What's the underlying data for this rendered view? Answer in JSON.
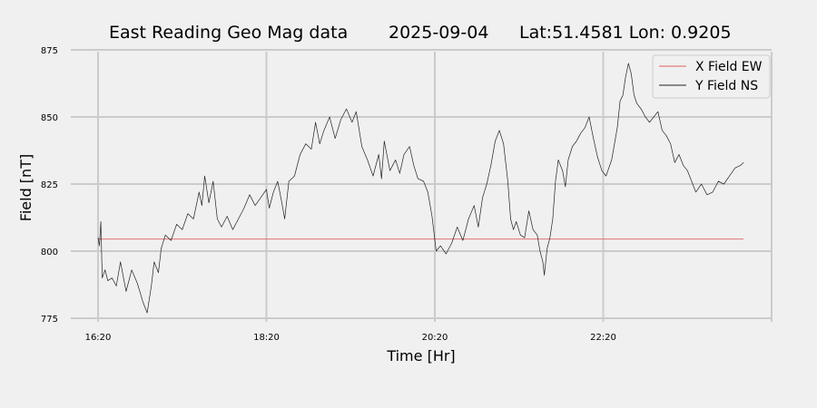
{
  "chart_data": {
    "type": "line",
    "title": {
      "name": "East Reading Geo Mag data",
      "date": "2025-09-04",
      "location": "Lat:51.4581  Lon: 0.9205"
    },
    "xlabel": "Time  [Hr]",
    "ylabel": "Field  [nT]",
    "x_unit": "hours",
    "xlim": [
      "16:20",
      "24:20"
    ],
    "ylim": [
      775,
      875
    ],
    "xticks": [
      "16:20",
      "18:20",
      "20:20",
      "22:20"
    ],
    "yticks": [
      775,
      800,
      825,
      850,
      875
    ],
    "grid": true,
    "legend_position": "top-right",
    "series": [
      {
        "name": "X Field EW",
        "color": "#e06060",
        "points": [
          [
            "16:20",
            804.5
          ],
          [
            "24:00",
            804.5
          ]
        ]
      },
      {
        "name": "Y Field NS",
        "color": "#222222",
        "points": [
          [
            "16:20",
            805
          ],
          [
            "16:21",
            802
          ],
          [
            "16:22",
            811
          ],
          [
            "16:23",
            790
          ],
          [
            "16:25",
            793
          ],
          [
            "16:27",
            789
          ],
          [
            "16:30",
            790
          ],
          [
            "16:33",
            787
          ],
          [
            "16:36",
            796
          ],
          [
            "16:40",
            785
          ],
          [
            "16:44",
            793
          ],
          [
            "16:48",
            788
          ],
          [
            "16:52",
            781
          ],
          [
            "16:55",
            777
          ],
          [
            "16:58",
            787
          ],
          [
            "17:00",
            796
          ],
          [
            "17:03",
            792
          ],
          [
            "17:05",
            801
          ],
          [
            "17:08",
            806
          ],
          [
            "17:12",
            804
          ],
          [
            "17:16",
            810
          ],
          [
            "17:20",
            808
          ],
          [
            "17:24",
            814
          ],
          [
            "17:28",
            812
          ],
          [
            "17:32",
            822
          ],
          [
            "17:34",
            817
          ],
          [
            "17:36",
            828
          ],
          [
            "17:39",
            818
          ],
          [
            "17:42",
            826
          ],
          [
            "17:45",
            812
          ],
          [
            "17:48",
            809
          ],
          [
            "17:52",
            813
          ],
          [
            "17:56",
            808
          ],
          [
            "18:00",
            812
          ],
          [
            "18:04",
            816
          ],
          [
            "18:08",
            821
          ],
          [
            "18:12",
            817
          ],
          [
            "18:16",
            820
          ],
          [
            "18:20",
            823
          ],
          [
            "18:22",
            816
          ],
          [
            "18:25",
            822
          ],
          [
            "18:28",
            826
          ],
          [
            "18:31",
            818
          ],
          [
            "18:33",
            812
          ],
          [
            "18:36",
            826
          ],
          [
            "18:40",
            828
          ],
          [
            "18:44",
            836
          ],
          [
            "18:48",
            840
          ],
          [
            "18:52",
            838
          ],
          [
            "18:55",
            848
          ],
          [
            "18:58",
            840
          ],
          [
            "19:01",
            845
          ],
          [
            "19:05",
            850
          ],
          [
            "19:09",
            842
          ],
          [
            "19:13",
            849
          ],
          [
            "19:17",
            853
          ],
          [
            "19:21",
            848
          ],
          [
            "19:24",
            852
          ],
          [
            "19:28",
            839
          ],
          [
            "19:32",
            834
          ],
          [
            "19:36",
            828
          ],
          [
            "19:40",
            836
          ],
          [
            "19:42",
            827
          ],
          [
            "19:44",
            841
          ],
          [
            "19:48",
            830
          ],
          [
            "19:52",
            834
          ],
          [
            "19:55",
            829
          ],
          [
            "19:58",
            836
          ],
          [
            "20:02",
            839
          ],
          [
            "20:05",
            832
          ],
          [
            "20:08",
            827
          ],
          [
            "20:12",
            826
          ],
          [
            "20:15",
            822
          ],
          [
            "20:18",
            813
          ],
          [
            "20:21",
            800
          ],
          [
            "20:24",
            802
          ],
          [
            "20:28",
            799
          ],
          [
            "20:32",
            803
          ],
          [
            "20:36",
            809
          ],
          [
            "20:40",
            804
          ],
          [
            "20:44",
            812
          ],
          [
            "20:48",
            817
          ],
          [
            "20:51",
            809
          ],
          [
            "20:54",
            820
          ],
          [
            "20:57",
            825
          ],
          [
            "21:00",
            832
          ],
          [
            "21:03",
            841
          ],
          [
            "21:06",
            845
          ],
          [
            "21:09",
            840
          ],
          [
            "21:12",
            826
          ],
          [
            "21:14",
            812
          ],
          [
            "21:16",
            808
          ],
          [
            "21:18",
            811
          ],
          [
            "21:21",
            806
          ],
          [
            "21:24",
            805
          ],
          [
            "21:27",
            815
          ],
          [
            "21:30",
            808
          ],
          [
            "21:33",
            806
          ],
          [
            "21:35",
            800
          ],
          [
            "21:37",
            796
          ],
          [
            "21:38",
            791
          ],
          [
            "21:40",
            801
          ],
          [
            "21:42",
            805
          ],
          [
            "21:44",
            812
          ],
          [
            "21:46",
            826
          ],
          [
            "21:48",
            834
          ],
          [
            "21:51",
            830
          ],
          [
            "21:53",
            824
          ],
          [
            "21:55",
            834
          ],
          [
            "21:58",
            839
          ],
          [
            "22:01",
            841
          ],
          [
            "22:04",
            844
          ],
          [
            "22:07",
            846
          ],
          [
            "22:10",
            850
          ],
          [
            "22:13",
            842
          ],
          [
            "22:16",
            835
          ],
          [
            "22:19",
            830
          ],
          [
            "22:22",
            828
          ],
          [
            "22:26",
            834
          ],
          [
            "22:30",
            846
          ],
          [
            "22:32",
            856
          ],
          [
            "22:34",
            858
          ],
          [
            "22:36",
            865
          ],
          [
            "22:38",
            870
          ],
          [
            "22:40",
            866
          ],
          [
            "22:42",
            858
          ],
          [
            "22:44",
            855
          ],
          [
            "22:47",
            853
          ],
          [
            "22:50",
            850
          ],
          [
            "22:53",
            848
          ],
          [
            "22:56",
            850
          ],
          [
            "22:59",
            852
          ],
          [
            "23:02",
            845
          ],
          [
            "23:05",
            843
          ],
          [
            "23:08",
            840
          ],
          [
            "23:11",
            833
          ],
          [
            "23:14",
            836
          ],
          [
            "23:17",
            832
          ],
          [
            "23:20",
            830
          ],
          [
            "23:23",
            826
          ],
          [
            "23:26",
            822
          ],
          [
            "23:30",
            825
          ],
          [
            "23:34",
            821
          ],
          [
            "23:38",
            822
          ],
          [
            "23:42",
            826
          ],
          [
            "23:46",
            825
          ],
          [
            "23:50",
            828
          ],
          [
            "23:54",
            831
          ],
          [
            "23:58",
            832
          ],
          [
            "24:00",
            833
          ]
        ]
      }
    ]
  }
}
